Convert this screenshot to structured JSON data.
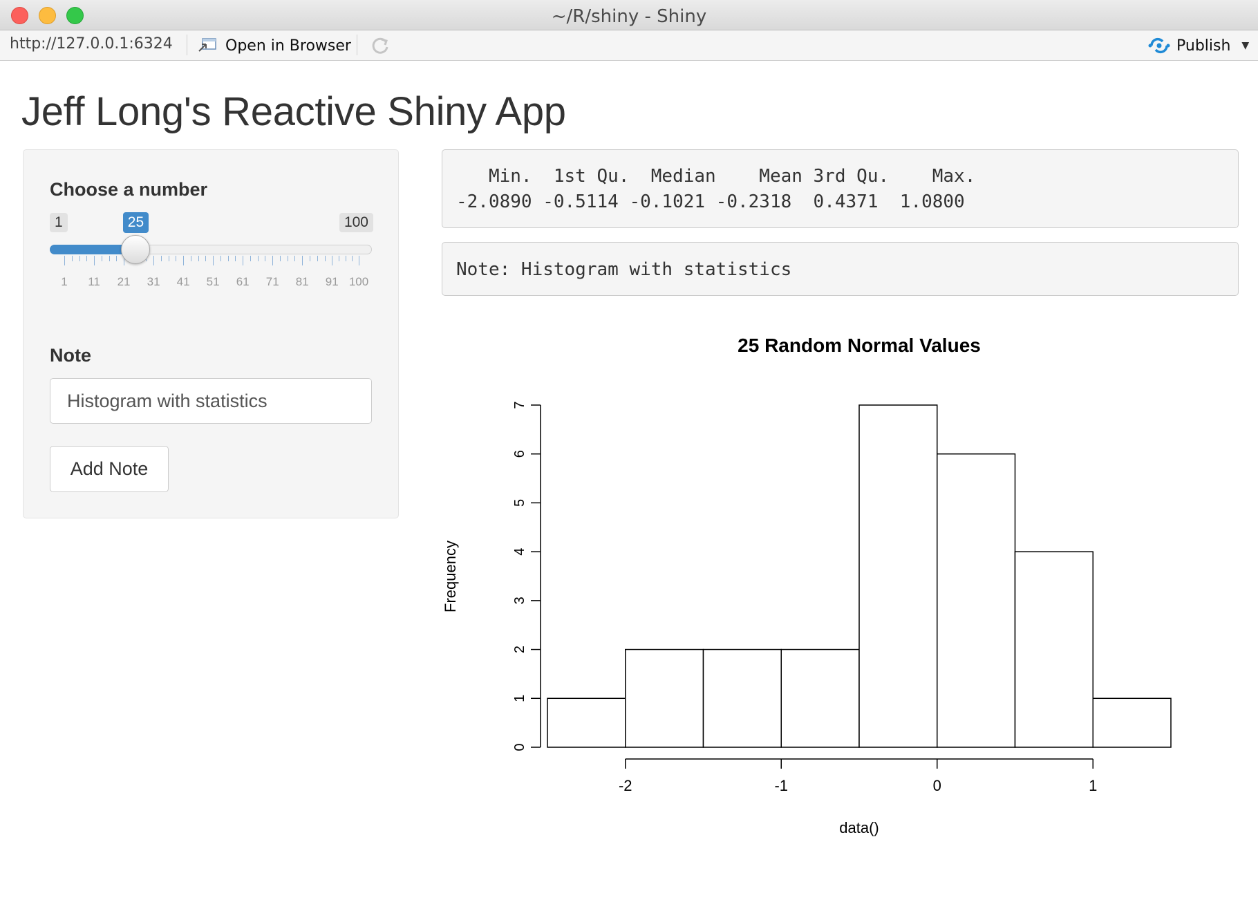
{
  "window": {
    "title": "~/R/shiny - Shiny"
  },
  "toolbar": {
    "url": "http://127.0.0.1:6324",
    "open_browser_label": "Open in Browser",
    "publish_label": "Publish"
  },
  "app": {
    "title": "Jeff Long's Reactive Shiny App"
  },
  "sidebar": {
    "slider": {
      "label": "Choose a number",
      "min": 1,
      "max": 100,
      "value": 25,
      "min_label": "1",
      "max_label": "100",
      "value_label": "25",
      "tick_labels": [
        "1",
        "11",
        "21",
        "31",
        "41",
        "51",
        "61",
        "71",
        "81",
        "91",
        "100"
      ],
      "accent_color": "#428bca"
    },
    "note": {
      "label": "Note",
      "value": "Histogram with statistics"
    },
    "add_note_label": "Add Note"
  },
  "summary": {
    "header": "   Min.  1st Qu.  Median    Mean 3rd Qu.    Max. ",
    "values": "-2.0890 -0.5114 -0.1021 -0.2318  0.4371  1.0800 "
  },
  "note_output": "Note: Histogram with statistics",
  "chart_data": {
    "type": "bar",
    "title": "25  Random Normal Values",
    "xlabel": "data()",
    "ylabel": "Frequency",
    "bins": [
      {
        "from": -2.5,
        "to": -2.0,
        "count": 1
      },
      {
        "from": -2.0,
        "to": -1.5,
        "count": 2
      },
      {
        "from": -1.5,
        "to": -1.0,
        "count": 2
      },
      {
        "from": -1.0,
        "to": -0.5,
        "count": 2
      },
      {
        "from": -0.5,
        "to": 0.0,
        "count": 7
      },
      {
        "from": 0.0,
        "to": 0.5,
        "count": 6
      },
      {
        "from": 0.5,
        "to": 1.0,
        "count": 4
      },
      {
        "from": 1.0,
        "to": 1.5,
        "count": 1
      }
    ],
    "xlim": [
      -2.5,
      1.5
    ],
    "ylim": [
      0,
      7
    ],
    "x_ticks": [
      -2,
      -1,
      0,
      1
    ],
    "x_tick_labels": [
      "-2",
      "-1",
      "0",
      "1"
    ],
    "y_ticks": [
      0,
      1,
      2,
      3,
      4,
      5,
      6,
      7
    ],
    "y_tick_labels": [
      "0",
      "1",
      "2",
      "3",
      "4",
      "5",
      "6",
      "7"
    ]
  }
}
